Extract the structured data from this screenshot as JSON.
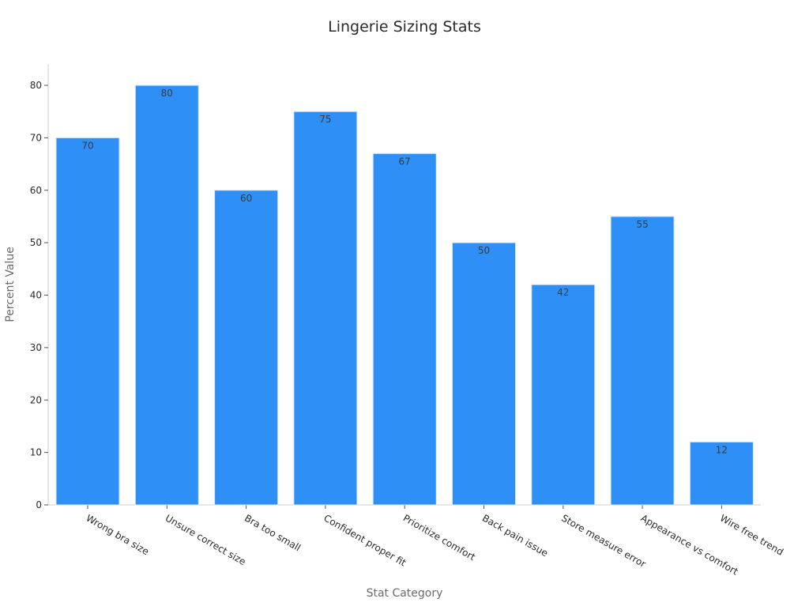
{
  "chart_data": {
    "type": "bar",
    "title": "Lingerie Sizing Stats",
    "xlabel": "Stat Category",
    "ylabel": "Percent Value",
    "categories": [
      "Wrong bra size",
      "Unsure correct size",
      "Bra too small",
      "Confident proper fit",
      "Prioritize comfort",
      "Back pain issue",
      "Store measure error",
      "Appearance vs comfort",
      "Wire free trend"
    ],
    "values": [
      70,
      80,
      60,
      75,
      67,
      50,
      42,
      55,
      12
    ],
    "data_labels": [
      "70",
      "80",
      "60",
      "75",
      "67",
      "50",
      "42",
      "55",
      "12"
    ],
    "ylim": [
      0,
      84
    ],
    "yticks": [
      0,
      10,
      20,
      30,
      40,
      50,
      60,
      70,
      80
    ],
    "ytick_labels": [
      "0",
      "10",
      "20",
      "30",
      "40",
      "50",
      "60",
      "70",
      "80"
    ],
    "grid": false,
    "legend": false,
    "colors": {
      "bar": "#2e90f7",
      "bar_edge": "#d6e8fb",
      "axis": "#cccccc"
    }
  }
}
